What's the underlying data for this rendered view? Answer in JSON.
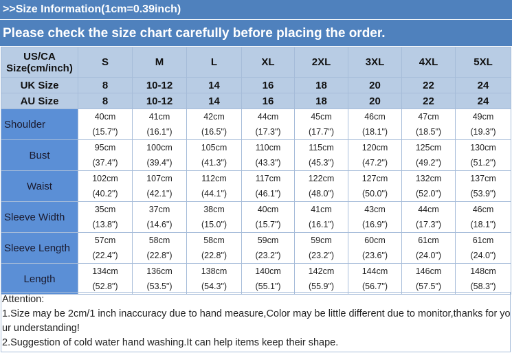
{
  "header": {
    "info": ">>Size Information(1cm=0.39inch)",
    "notice": "Please check the size chart carefully before placing the order."
  },
  "table": {
    "corner": [
      "US/CA",
      "Size(cm/inch)"
    ],
    "sizes": [
      "S",
      "M",
      "L",
      "XL",
      "2XL",
      "3XL",
      "4XL",
      "5XL"
    ],
    "uk": {
      "label": "UK Size",
      "values": [
        "8",
        "10-12",
        "14",
        "16",
        "18",
        "20",
        "22",
        "24"
      ]
    },
    "au": {
      "label": "AU Size",
      "values": [
        "8",
        "10-12",
        "14",
        "16",
        "18",
        "20",
        "22",
        "24"
      ]
    },
    "rows": [
      {
        "label": "Shoulder",
        "cells": [
          [
            "40cm",
            "(15.7\")"
          ],
          [
            "41cm",
            "(16.1\")"
          ],
          [
            "42cm",
            "(16.5\")"
          ],
          [
            "44cm",
            "(17.3\")"
          ],
          [
            "45cm",
            "(17.7\")"
          ],
          [
            "46cm",
            "(18.1\")"
          ],
          [
            "47cm",
            "(18.5\")"
          ],
          [
            "49cm",
            "(19.3\")"
          ]
        ]
      },
      {
        "label": "Bust",
        "cells": [
          [
            "95cm",
            "(37.4\")"
          ],
          [
            "100cm",
            "(39.4\")"
          ],
          [
            "105cm",
            "(41.3\")"
          ],
          [
            "110cm",
            "(43.3\")"
          ],
          [
            "115cm",
            "(45.3\")"
          ],
          [
            "120cm",
            "(47.2\")"
          ],
          [
            "125cm",
            "(49.2\")"
          ],
          [
            "130cm",
            "(51.2\")"
          ]
        ]
      },
      {
        "label": "Waist",
        "cells": [
          [
            "102cm",
            "(40.2\")"
          ],
          [
            "107cm",
            "(42.1\")"
          ],
          [
            "112cm",
            "(44.1\")"
          ],
          [
            "117cm",
            "(46.1\")"
          ],
          [
            "122cm",
            "(48.0\")"
          ],
          [
            "127cm",
            "(50.0\")"
          ],
          [
            "132cm",
            "(52.0\")"
          ],
          [
            "137cm",
            "(53.9\")"
          ]
        ]
      },
      {
        "label": "Sleeve Width",
        "cells": [
          [
            "35cm",
            "(13.8\")"
          ],
          [
            "37cm",
            "(14.6\")"
          ],
          [
            "38cm",
            "(15.0\")"
          ],
          [
            "40cm",
            "(15.7\")"
          ],
          [
            "41cm",
            "(16.1\")"
          ],
          [
            "43cm",
            "(16.9\")"
          ],
          [
            "44cm",
            "(17.3\")"
          ],
          [
            "46cm",
            "(18.1\")"
          ]
        ]
      },
      {
        "label": "Sleeve Length",
        "cells": [
          [
            "57cm",
            "(22.4\")"
          ],
          [
            "58cm",
            "(22.8\")"
          ],
          [
            "58cm",
            "(22.8\")"
          ],
          [
            "59cm",
            "(23.2\")"
          ],
          [
            "59cm",
            "(23.2\")"
          ],
          [
            "60cm",
            "(23.6\")"
          ],
          [
            "61cm",
            "(24.0\")"
          ],
          [
            "61cm",
            "(24.0\")"
          ]
        ]
      },
      {
        "label": "Length",
        "cells": [
          [
            "134cm",
            "(52.8\")"
          ],
          [
            "136cm",
            "(53.5\")"
          ],
          [
            "138cm",
            "(54.3\")"
          ],
          [
            "140cm",
            "(55.1\")"
          ],
          [
            "142cm",
            "(55.9\")"
          ],
          [
            "144cm",
            "(56.7\")"
          ],
          [
            "146cm",
            "(57.5\")"
          ],
          [
            "148cm",
            "(58.3\")"
          ]
        ]
      }
    ]
  },
  "attention": {
    "title": "Attention:",
    "lines": [
      "1.Size may be 2cm/1 inch inaccuracy due to hand measure,Color may be little different due to monitor,thanks for your understanding!",
      "2.Suggestion of cold water hand washing.It can help items keep their shape."
    ]
  }
}
